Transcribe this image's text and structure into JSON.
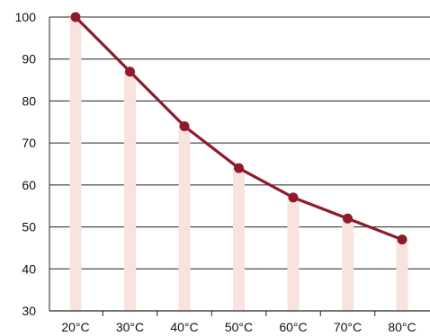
{
  "chart_data": {
    "type": "line",
    "title": "",
    "xlabel": "",
    "ylabel": "",
    "categories": [
      "20°C",
      "30°C",
      "40°C",
      "50°C",
      "60°C",
      "70°C",
      "80°C"
    ],
    "series": [
      {
        "values": [
          100,
          87,
          74,
          64,
          57,
          52,
          47
        ]
      }
    ],
    "ylim": [
      30,
      100
    ],
    "yticks": [
      30,
      40,
      50,
      60,
      70,
      80,
      90,
      100
    ],
    "grid": "horizontal",
    "drop_bars": true,
    "colors": {
      "line": "#8e1b2b",
      "marker": "#8e1b2b",
      "bar": "#f9e3df",
      "grid": "#222222",
      "axis": "#222222"
    }
  }
}
